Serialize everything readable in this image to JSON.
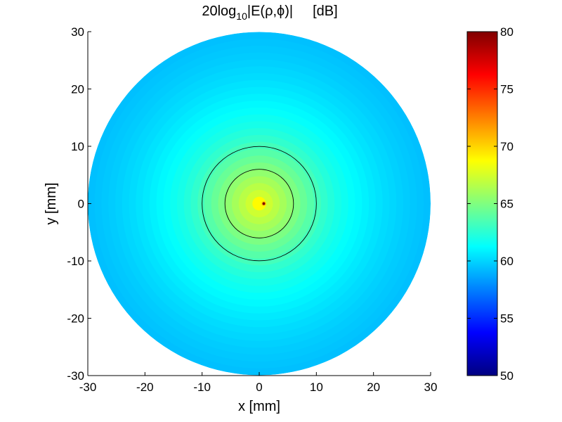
{
  "chart_data": {
    "type": "heatmap",
    "title": {
      "prefix": "20log",
      "subscript": "10",
      "suffix": "|E(ρ,ϕ)|",
      "units": "[dB]"
    },
    "xlabel": "x [mm]",
    "ylabel": "y [mm]",
    "xlim": [
      -30,
      30
    ],
    "ylim": [
      -30,
      30
    ],
    "xticks": [
      -30,
      -20,
      -10,
      0,
      10,
      20,
      30
    ],
    "yticks": [
      -30,
      -20,
      -10,
      0,
      10,
      20,
      30
    ],
    "xtick_labels": [
      "-30",
      "-20",
      "-10",
      "0",
      "10",
      "20",
      "30"
    ],
    "ytick_labels": [
      "-30",
      "-20",
      "-10",
      "0",
      "10",
      "20",
      "30"
    ],
    "domain": {
      "shape": "disk",
      "center": [
        0,
        0
      ],
      "radius": 30
    },
    "field": {
      "peak": {
        "x": 0.8,
        "y": 0,
        "value": 80
      },
      "radial_profile": [
        {
          "rho": 0,
          "value": 80
        },
        {
          "rho": 0.5,
          "value": 70
        },
        {
          "rho": 2,
          "value": 67.5
        },
        {
          "rho": 4,
          "value": 66.5
        },
        {
          "rho": 6,
          "value": 65.5
        },
        {
          "rho": 8,
          "value": 64.5
        },
        {
          "rho": 10,
          "value": 63.6
        },
        {
          "rho": 12,
          "value": 62.7
        },
        {
          "rho": 14,
          "value": 62
        },
        {
          "rho": 17,
          "value": 61.3
        },
        {
          "rho": 20,
          "value": 60.7
        },
        {
          "rho": 23,
          "value": 60.2
        },
        {
          "rho": 26,
          "value": 59.8
        },
        {
          "rho": 30,
          "value": 59.4
        }
      ]
    },
    "overlay_circles": [
      {
        "center": [
          0,
          0
        ],
        "radius": 6,
        "color": "#000000"
      },
      {
        "center": [
          0,
          0
        ],
        "radius": 10,
        "color": "#000000"
      }
    ],
    "colorbar": {
      "colormap": "jet",
      "range": [
        50,
        80
      ],
      "ticks": [
        50,
        55,
        60,
        65,
        70,
        75,
        80
      ],
      "tick_labels": [
        "50",
        "55",
        "60",
        "65",
        "70",
        "75",
        "80"
      ]
    },
    "grid": false
  }
}
